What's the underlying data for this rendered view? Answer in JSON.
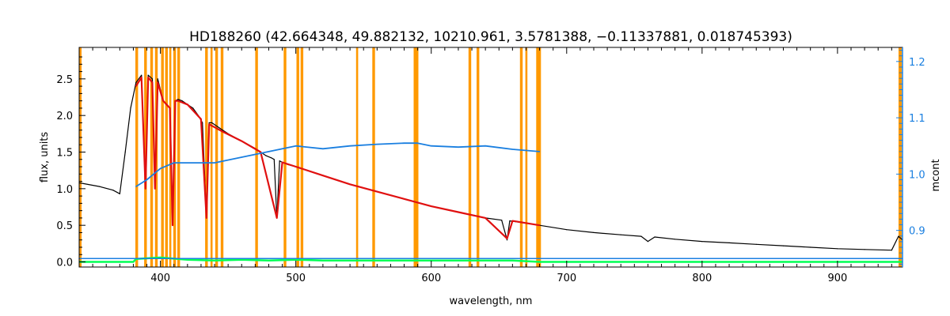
{
  "chart_data": {
    "type": "line",
    "title": "HD188260    (42.664348, 49.882132, 10210.961, 3.5781388, −0.11337881, 0.018745393)",
    "xlabel": "wavelength, nm",
    "ylabel": "flux, units",
    "y2label": "mcont",
    "xlim": [
      340,
      948
    ],
    "ylim": [
      -0.07,
      2.93
    ],
    "y2lim": [
      0.835,
      1.225
    ],
    "xticks": [
      400,
      500,
      600,
      700,
      800,
      900
    ],
    "yticks": [
      0.0,
      0.5,
      1.0,
      1.5,
      2.0,
      2.5
    ],
    "y2ticks": [
      0.9,
      1.0,
      1.1,
      1.2
    ],
    "grid": false,
    "colors": {
      "observed": "#000000",
      "model": "#e01010",
      "residual": "#00ff55",
      "continuum": "#1a7fe0",
      "masks": "#ff9900",
      "right_axis": "#1a7fe0"
    },
    "mask_bands": [
      [
        381.5,
        383.5
      ],
      [
        388.0,
        390.0
      ],
      [
        392.5,
        394.5
      ],
      [
        396.0,
        398.0
      ],
      [
        400.5,
        402.5
      ],
      [
        403.5,
        405.5
      ],
      [
        406.5,
        408.0
      ],
      [
        409.5,
        411.5
      ],
      [
        412.5,
        414.5
      ],
      [
        433.0,
        435.0
      ],
      [
        437.0,
        438.5
      ],
      [
        440.5,
        442.5
      ],
      [
        444.5,
        446.5
      ],
      [
        470.0,
        472.0
      ],
      [
        491.0,
        493.0
      ],
      [
        500.5,
        502.5
      ],
      [
        503.5,
        505.5
      ],
      [
        544.5,
        546.0
      ],
      [
        556.5,
        558.5
      ],
      [
        587.0,
        590.5
      ],
      [
        627.5,
        629.5
      ],
      [
        633.5,
        635.5
      ],
      [
        665.5,
        667.5
      ],
      [
        669.5,
        671.0
      ],
      [
        677.5,
        681.0
      ]
    ],
    "series": [
      {
        "role": "observed",
        "x": [
          340,
          355,
          365,
          370,
          374,
          378,
          382,
          386,
          389,
          391,
          394,
          396,
          398,
          402,
          407,
          409,
          411,
          413,
          416,
          420,
          424,
          428,
          431,
          434,
          436,
          438,
          442,
          446,
          450,
          455,
          460,
          465,
          470,
          474,
          478,
          482,
          484,
          486,
          488,
          490,
          494,
          500,
          520,
          540,
          560,
          580,
          600,
          620,
          640,
          652,
          656,
          658,
          662,
          680,
          700,
          720,
          740,
          755,
          760,
          765,
          780,
          800,
          820,
          840,
          860,
          880,
          900,
          920,
          940,
          945,
          948
        ],
        "y": [
          1.08,
          1.03,
          0.98,
          0.93,
          1.5,
          2.1,
          2.45,
          2.55,
          1.0,
          2.55,
          2.5,
          1.0,
          2.5,
          2.2,
          2.1,
          0.5,
          2.2,
          2.22,
          2.2,
          2.15,
          2.1,
          2.0,
          1.9,
          0.6,
          1.9,
          1.9,
          1.85,
          1.8,
          1.75,
          1.7,
          1.65,
          1.6,
          1.55,
          1.5,
          1.45,
          1.42,
          1.4,
          0.6,
          1.38,
          1.36,
          1.33,
          1.3,
          1.18,
          1.06,
          0.96,
          0.86,
          0.76,
          0.68,
          0.6,
          0.57,
          0.3,
          0.56,
          0.55,
          0.5,
          0.44,
          0.4,
          0.37,
          0.35,
          0.28,
          0.34,
          0.31,
          0.28,
          0.26,
          0.24,
          0.22,
          0.2,
          0.18,
          0.17,
          0.16,
          0.35,
          0.3
        ]
      },
      {
        "role": "model",
        "x": [
          382,
          386,
          389,
          391,
          394,
          396,
          398,
          402,
          407,
          409,
          411,
          413,
          420,
          430,
          434,
          436,
          446,
          460,
          474,
          486,
          490,
          500,
          520,
          540,
          560,
          580,
          600,
          620,
          640,
          656,
          660,
          680
        ],
        "y": [
          2.4,
          2.52,
          1.0,
          2.52,
          2.45,
          1.0,
          2.45,
          2.2,
          2.1,
          0.5,
          2.2,
          2.2,
          2.15,
          1.95,
          0.6,
          1.88,
          1.78,
          1.65,
          1.5,
          0.6,
          1.36,
          1.3,
          1.18,
          1.06,
          0.96,
          0.86,
          0.76,
          0.68,
          0.6,
          0.32,
          0.56,
          0.5
        ]
      },
      {
        "role": "residual",
        "x": [
          340,
          380,
          382,
          400,
          420,
          440,
          460,
          480,
          500,
          520,
          540,
          560,
          580,
          600,
          620,
          640,
          660,
          680,
          948
        ],
        "y": [
          0.0,
          0.0,
          0.04,
          0.06,
          0.03,
          0.02,
          0.03,
          0.02,
          0.03,
          0.02,
          0.02,
          0.02,
          0.02,
          0.02,
          0.02,
          0.02,
          0.02,
          0.0,
          0.0
        ]
      },
      {
        "role": "continuum",
        "axis": "right",
        "x": [
          382,
          390,
          400,
          410,
          420,
          440,
          460,
          480,
          500,
          520,
          540,
          560,
          580,
          590,
          600,
          620,
          640,
          660,
          680
        ],
        "y": [
          0.978,
          0.99,
          1.01,
          1.02,
          1.02,
          1.02,
          1.03,
          1.04,
          1.05,
          1.045,
          1.05,
          1.053,
          1.055,
          1.055,
          1.05,
          1.048,
          1.05,
          1.044,
          1.04
        ]
      },
      {
        "role": "continuum-baseline",
        "axis": "right",
        "x": [
          340,
          948
        ],
        "y": [
          0.85,
          0.85
        ]
      }
    ]
  }
}
